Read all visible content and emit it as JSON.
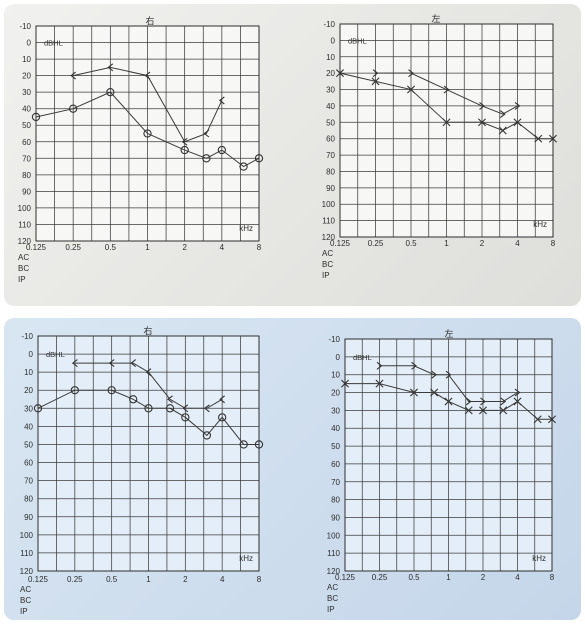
{
  "chart_data": [
    {
      "type": "line",
      "title": "右",
      "unit_label": "dBHL",
      "xlabel": "kHz",
      "x_ticks": [
        "0.125",
        "0.25",
        "0.5",
        "1",
        "2",
        "4",
        "8"
      ],
      "y_ticks": [
        -10,
        0,
        10,
        20,
        30,
        40,
        50,
        60,
        70,
        80,
        90,
        100,
        110,
        120
      ],
      "ylim": [
        -10,
        120
      ],
      "legend": [
        "AC",
        "BC",
        "IP"
      ],
      "grid": true,
      "series": [
        {
          "name": "",
          "marker": "O",
          "x": [
            0.125,
            0.25,
            0.5,
            1,
            2,
            3,
            4,
            6,
            8
          ],
          "y": [
            45,
            40,
            30,
            55,
            65,
            70,
            65,
            75,
            70
          ]
        },
        {
          "name": "",
          "marker": "<",
          "x": [
            0.25,
            0.5,
            1,
            2,
            3,
            4
          ],
          "y": [
            20,
            15,
            20,
            60,
            55,
            35
          ]
        }
      ]
    },
    {
      "type": "line",
      "title": "左",
      "unit_label": "dBHL",
      "xlabel": "kHz",
      "x_ticks": [
        "0.125",
        "0.25",
        "0.5",
        "1",
        "2",
        "4",
        "8"
      ],
      "y_ticks": [
        -10,
        0,
        10,
        20,
        30,
        40,
        50,
        60,
        70,
        80,
        90,
        100,
        110,
        120
      ],
      "ylim": [
        -10,
        120
      ],
      "legend": [
        "AC",
        "BC",
        "IP"
      ],
      "grid": true,
      "series": [
        {
          "name": "",
          "marker": "X",
          "x": [
            0.125,
            0.25,
            0.5,
            1,
            2,
            3,
            4,
            6,
            8
          ],
          "y": [
            20,
            25,
            30,
            50,
            50,
            55,
            50,
            60,
            60
          ]
        },
        {
          "name": "",
          "marker": ">",
          "x": [
            0.25,
            0.5,
            1,
            2,
            3,
            4
          ],
          "y": [
            20,
            20,
            30,
            40,
            45,
            40
          ]
        }
      ]
    },
    {
      "type": "line",
      "title": "右",
      "unit_label": "dBHL",
      "xlabel": "kHz",
      "x_ticks": [
        "0.125",
        "0.25",
        "0.5",
        "1",
        "2",
        "4",
        "8"
      ],
      "y_ticks": [
        -10,
        0,
        10,
        20,
        30,
        40,
        50,
        60,
        70,
        80,
        90,
        100,
        110,
        120
      ],
      "ylim": [
        -10,
        120
      ],
      "legend": [
        "AC",
        "BC",
        "IP"
      ],
      "grid": true,
      "series": [
        {
          "name": "",
          "marker": "O",
          "x": [
            0.125,
            0.25,
            0.5,
            0.75,
            1,
            1.5,
            2,
            3,
            4,
            6,
            8
          ],
          "y": [
            30,
            20,
            20,
            25,
            30,
            30,
            35,
            45,
            35,
            50,
            50
          ]
        },
        {
          "name": "",
          "marker": "<",
          "x": [
            0.25,
            0.5,
            0.75,
            1,
            1.5,
            2,
            3,
            4
          ],
          "y": [
            5,
            5,
            5,
            10,
            25,
            30,
            30,
            25
          ]
        }
      ]
    },
    {
      "type": "line",
      "title": "左",
      "unit_label": "dBHL",
      "xlabel": "kHz",
      "x_ticks": [
        "0.125",
        "0.25",
        "0.5",
        "1",
        "2",
        "4",
        "8"
      ],
      "y_ticks": [
        -10,
        0,
        10,
        20,
        30,
        40,
        50,
        60,
        70,
        80,
        90,
        100,
        110,
        120
      ],
      "ylim": [
        -10,
        120
      ],
      "legend": [
        "AC",
        "BC",
        "IP"
      ],
      "grid": true,
      "series": [
        {
          "name": "",
          "marker": "X",
          "x": [
            0.125,
            0.25,
            0.5,
            0.75,
            1,
            1.5,
            2,
            3,
            4,
            6,
            8
          ],
          "y": [
            15,
            15,
            20,
            20,
            25,
            30,
            30,
            30,
            25,
            35,
            35
          ]
        },
        {
          "name": "",
          "marker": ">",
          "x": [
            0.25,
            0.5,
            0.75,
            1,
            1.5,
            2,
            3,
            4
          ],
          "y": [
            5,
            5,
            10,
            10,
            25,
            25,
            25,
            20
          ]
        }
      ]
    }
  ]
}
